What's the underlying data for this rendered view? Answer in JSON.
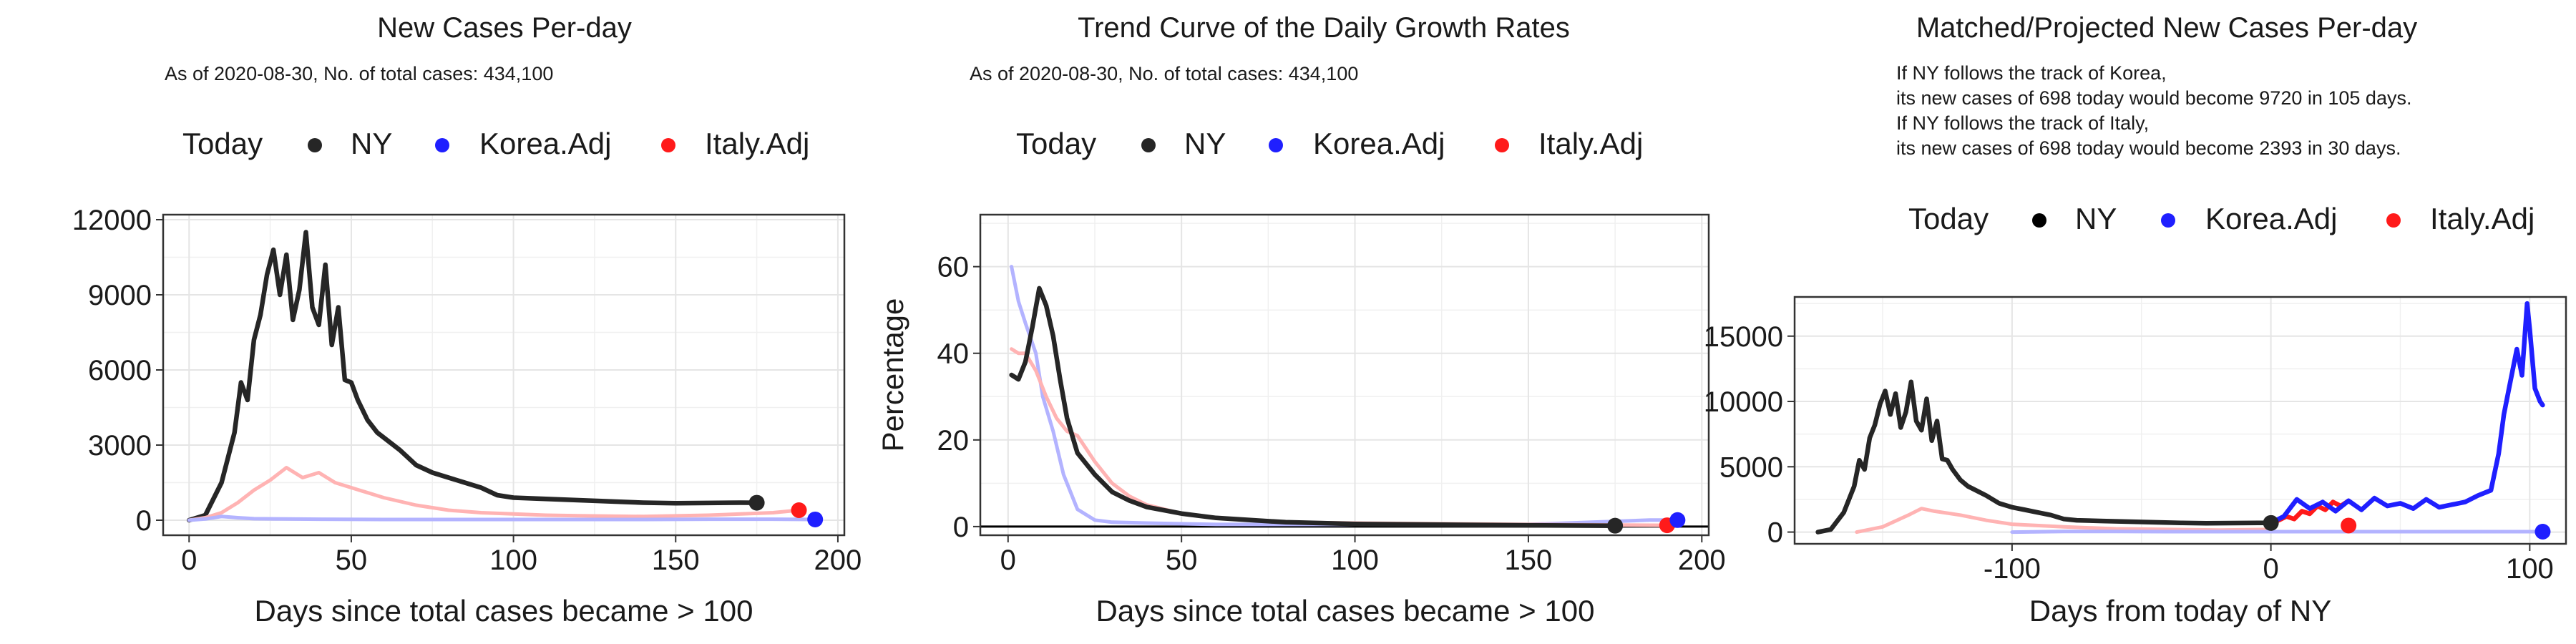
{
  "colors": {
    "ny": "#262626",
    "korea": "#1f1fff",
    "italy": "#ff1a1a",
    "korea_faint": "#b3b3ff",
    "italy_faint": "#ffb3b3",
    "grid": "#e5e5e5"
  },
  "chart_data": [
    {
      "type": "line",
      "title": "New Cases Per-day",
      "subtitle": "As of 2020-08-30, No. of total cases: 434,100",
      "legend": {
        "placement": "top",
        "title": "Today",
        "entries": [
          "NY",
          "Korea.Adj",
          "Italy.Adj"
        ]
      },
      "xlabel": "Days since total cases became > 100",
      "ylabel": "",
      "xlim": [
        -8,
        202
      ],
      "ylim": [
        -600,
        12200
      ],
      "xticks": [
        0,
        50,
        100,
        150,
        200
      ],
      "xtick_labels": [
        "0",
        "50",
        "100",
        "150",
        "200"
      ],
      "yticks": [
        0,
        3000,
        6000,
        9000,
        12000
      ],
      "ytick_labels": [
        "0",
        "3000",
        "6000",
        "9000",
        "12000"
      ],
      "grid": true,
      "today_points": [
        {
          "series": "NY",
          "x": 175,
          "y": 698
        },
        {
          "series": "Italy.Adj",
          "x": 188,
          "y": 400
        },
        {
          "series": "Korea.Adj",
          "x": 193,
          "y": 30
        }
      ],
      "series": [
        {
          "name": "NY",
          "style": "ny",
          "x": [
            0,
            5,
            10,
            14,
            16,
            18,
            20,
            22,
            24,
            26,
            28,
            30,
            32,
            34,
            36,
            38,
            40,
            42,
            44,
            46,
            48,
            50,
            52,
            55,
            58,
            60,
            65,
            70,
            75,
            80,
            85,
            90,
            95,
            100,
            110,
            120,
            130,
            140,
            150,
            160,
            170,
            175
          ],
          "y": [
            0,
            200,
            1500,
            3500,
            5500,
            4800,
            7200,
            8200,
            9800,
            10800,
            9000,
            10600,
            8000,
            9200,
            11500,
            8500,
            7800,
            10200,
            7000,
            8500,
            5600,
            5500,
            4800,
            4000,
            3500,
            3300,
            2800,
            2200,
            1900,
            1700,
            1500,
            1300,
            1000,
            900,
            850,
            800,
            750,
            700,
            680,
            690,
            700,
            698
          ]
        },
        {
          "name": "Italy.Adj",
          "style": "italy_faint",
          "x": [
            0,
            5,
            10,
            15,
            20,
            25,
            30,
            35,
            40,
            45,
            50,
            60,
            70,
            80,
            90,
            100,
            110,
            120,
            140,
            160,
            180,
            188
          ],
          "y": [
            0,
            100,
            300,
            700,
            1200,
            1600,
            2100,
            1700,
            1900,
            1500,
            1300,
            900,
            600,
            400,
            300,
            250,
            200,
            180,
            150,
            200,
            300,
            400
          ]
        },
        {
          "name": "Korea.Adj",
          "style": "korea_faint",
          "x": [
            0,
            5,
            10,
            15,
            20,
            30,
            40,
            60,
            80,
            100,
            120,
            140,
            160,
            180,
            193
          ],
          "y": [
            0,
            50,
            150,
            100,
            60,
            50,
            40,
            30,
            30,
            30,
            30,
            30,
            40,
            40,
            30
          ]
        }
      ]
    },
    {
      "type": "line",
      "title": "Trend Curve of the Daily Growth Rates",
      "subtitle": "As of 2020-08-30, No. of total cases: 434,100",
      "legend": {
        "placement": "top",
        "title": "Today",
        "entries": [
          "NY",
          "Korea.Adj",
          "Italy.Adj"
        ]
      },
      "xlabel": "Days since total cases became > 100",
      "ylabel": "Percentage",
      "xlim": [
        -8,
        202
      ],
      "ylim": [
        -2,
        72
      ],
      "xticks": [
        0,
        50,
        100,
        150,
        200
      ],
      "xtick_labels": [
        "0",
        "50",
        "100",
        "150",
        "200"
      ],
      "yticks": [
        0,
        20,
        40,
        60
      ],
      "ytick_labels": [
        "0",
        "20",
        "40",
        "60"
      ],
      "grid": true,
      "zero_line": true,
      "today_points": [
        {
          "series": "NY",
          "x": 175,
          "y": 0.2
        },
        {
          "series": "Italy.Adj",
          "x": 190,
          "y": 0.3
        },
        {
          "series": "Korea.Adj",
          "x": 193,
          "y": 1.5
        }
      ],
      "series": [
        {
          "name": "Korea.Adj",
          "style": "korea_faint",
          "x": [
            1,
            3,
            5,
            8,
            10,
            13,
            16,
            20,
            25,
            30,
            40,
            60,
            100,
            150,
            185,
            193
          ],
          "y": [
            60,
            52,
            47,
            40,
            30,
            22,
            12,
            4,
            1.5,
            1,
            0.8,
            0.5,
            0.5,
            0.5,
            1.5,
            1.5
          ]
        },
        {
          "name": "Italy.Adj",
          "style": "italy_faint",
          "x": [
            1,
            3,
            5,
            8,
            11,
            14,
            17,
            20,
            25,
            30,
            35,
            40,
            50,
            60,
            80,
            100,
            150,
            190
          ],
          "y": [
            41,
            40,
            40,
            36,
            30,
            25,
            22,
            21,
            15,
            10,
            7,
            5,
            3,
            2,
            1,
            0.8,
            0.5,
            0.3
          ]
        },
        {
          "name": "NY",
          "style": "ny",
          "x": [
            1,
            3,
            5,
            7,
            9,
            11,
            13,
            15,
            17,
            20,
            25,
            30,
            35,
            40,
            50,
            60,
            80,
            100,
            150,
            175
          ],
          "y": [
            35,
            34,
            38,
            46,
            55,
            51,
            44,
            34,
            25,
            17,
            12,
            8,
            6,
            4.5,
            3,
            2,
            1,
            0.6,
            0.3,
            0.2
          ]
        }
      ]
    },
    {
      "type": "line",
      "title": "Matched/Projected New Cases Per-day",
      "annotation": [
        "If NY follows the track of Korea,",
        "its new cases of 698 today would become 9720 in 105 days.",
        "If NY follows the track of Italy,",
        "its new cases of 698 today would become 2393 in 30 days."
      ],
      "legend": {
        "placement": "top",
        "title": "Today",
        "entries": [
          "NY",
          "Korea.Adj",
          "Italy.Adj"
        ]
      },
      "xlabel": "Days from today of NY",
      "ylabel": "",
      "xlim": [
        -184,
        114
      ],
      "ylim": [
        -900,
        18000
      ],
      "xticks": [
        -100,
        0,
        100
      ],
      "xtick_labels": [
        "-100",
        "0",
        "100"
      ],
      "yticks": [
        0,
        5000,
        10000,
        15000
      ],
      "ytick_labels": [
        "0",
        "5000",
        "10000",
        "15000"
      ],
      "grid": true,
      "today_points": [
        {
          "series": "NY",
          "x": 0,
          "y": 698
        },
        {
          "series": "Italy.Adj",
          "x": 30,
          "y": 500
        },
        {
          "series": "Korea.Adj",
          "x": 105,
          "y": 30
        }
      ],
      "series": [
        {
          "name": "Italy.Adj",
          "style": "italy_faint",
          "x": [
            -160,
            -150,
            -140,
            -135,
            -130,
            -120,
            -110,
            -100,
            -80,
            -60,
            -40,
            -20,
            0
          ],
          "y": [
            0,
            400,
            1300,
            1800,
            1600,
            1300,
            900,
            600,
            400,
            250,
            200,
            150,
            200
          ]
        },
        {
          "name": "Korea.Adj",
          "style": "korea_faint",
          "x": [
            -100,
            -80,
            -60,
            -40,
            -20,
            0,
            20,
            40,
            60,
            80,
            105
          ],
          "y": [
            0,
            50,
            40,
            30,
            30,
            30,
            30,
            30,
            30,
            30,
            30
          ]
        },
        {
          "name": "NY",
          "style": "ny",
          "x": [
            -175,
            -170,
            -165,
            -161,
            -159,
            -157,
            -155,
            -153,
            -151,
            -149,
            -147,
            -145,
            -143,
            -141,
            -139,
            -137,
            -135,
            -133,
            -131,
            -129,
            -127,
            -125,
            -123,
            -120,
            -117,
            -115,
            -110,
            -105,
            -100,
            -95,
            -90,
            -85,
            -80,
            -75,
            -65,
            -55,
            -45,
            -35,
            -25,
            -15,
            -5,
            0
          ],
          "y": [
            0,
            200,
            1500,
            3500,
            5500,
            4800,
            7200,
            8200,
            9800,
            10800,
            9000,
            10600,
            8000,
            9200,
            11500,
            8500,
            7800,
            10200,
            7000,
            8500,
            5600,
            5500,
            4800,
            4000,
            3500,
            3300,
            2800,
            2200,
            1900,
            1700,
            1500,
            1300,
            1000,
            900,
            850,
            800,
            750,
            700,
            680,
            690,
            700,
            698
          ]
        },
        {
          "name": "Italy.Adj",
          "style": "italy",
          "x": [
            0,
            3,
            6,
            9,
            12,
            15,
            18,
            21,
            24,
            27,
            30
          ],
          "y": [
            698,
            900,
            1200,
            1000,
            1600,
            1400,
            2000,
            1700,
            2300,
            2000,
            2393
          ]
        },
        {
          "name": "Korea.Adj",
          "style": "korea",
          "x": [
            0,
            5,
            10,
            15,
            20,
            25,
            30,
            35,
            40,
            45,
            50,
            55,
            60,
            65,
            70,
            75,
            80,
            85,
            88,
            90,
            92,
            95,
            97,
            99,
            100,
            102,
            104,
            105
          ],
          "y": [
            698,
            1200,
            2500,
            1800,
            2300,
            1600,
            2400,
            1700,
            2600,
            2000,
            2200,
            1800,
            2500,
            1900,
            2100,
            2300,
            2800,
            3200,
            6000,
            9000,
            11000,
            14000,
            12000,
            17500,
            15500,
            11000,
            10000,
            9720
          ]
        }
      ]
    }
  ]
}
